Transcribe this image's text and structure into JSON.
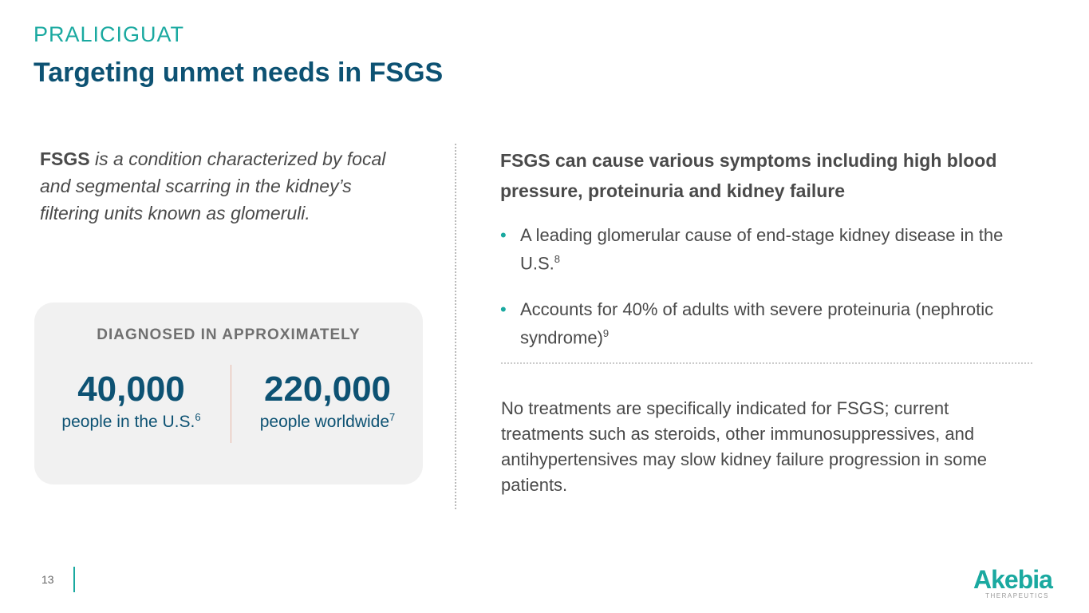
{
  "header": {
    "kicker": "PRALICIGUAT",
    "title": "Targeting unmet needs in FSGS"
  },
  "intro": {
    "term": "FSGS",
    "text": " is a condition characterized by focal and segmental scarring in the kidney’s filtering units known as glomeruli."
  },
  "card": {
    "heading": "DIAGNOSED IN APPROXIMATELY",
    "stats": [
      {
        "value": "40,000",
        "label": "people in the U.S.",
        "ref": "6"
      },
      {
        "value": "220,000",
        "label": "people worldwide",
        "ref": "7"
      }
    ]
  },
  "right": {
    "heading": "FSGS can cause various symptoms including high blood pressure, proteinuria and kidney failure",
    "bullets": [
      {
        "text": "A leading glomerular cause of end-stage kidney disease in the U.S.",
        "ref": "8"
      },
      {
        "text": "Accounts for 40% of adults with severe proteinuria (nephrotic syndrome)",
        "ref": "9"
      }
    ],
    "note": "No treatments are specifically indicated for FSGS; current treatments such as steroids, other immunosuppressives, and antihypertensives may slow kidney failure progression in some patients."
  },
  "footer": {
    "page": "13",
    "logo_word": "Akebia",
    "logo_sub": "THERAPEUTICS"
  },
  "colors": {
    "teal": "#1aa9a0",
    "navy": "#0d5273"
  }
}
